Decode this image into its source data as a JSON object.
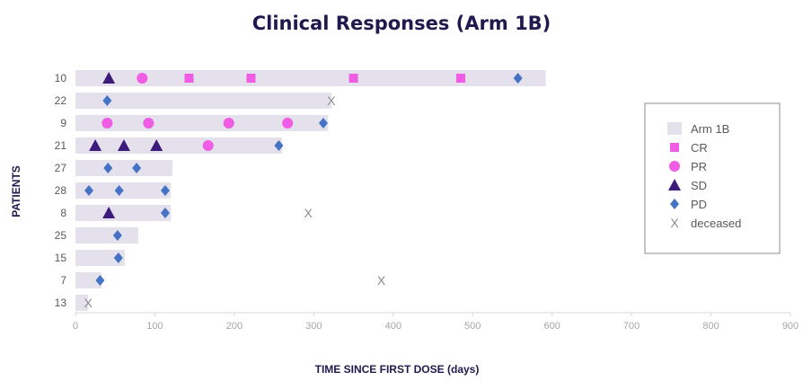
{
  "chart_data": {
    "type": "scatter",
    "subtype": "swimmer",
    "title": "Clinical Responses (Arm 1B)",
    "xlabel": "TIME SINCE FIRST DOSE (days)",
    "ylabel": "PATIENTS",
    "xlim": [
      0,
      900
    ],
    "xticks": [
      0,
      100,
      200,
      300,
      400,
      500,
      600,
      700,
      800,
      900
    ],
    "grid": false,
    "legend_position": "right",
    "colors": {
      "bar": "#e4e0ec",
      "CR": "#f05ce3",
      "PR": "#f05ce3",
      "SD": "#3d1b7c",
      "PD": "#4472c4",
      "deceased": "#8c8c8c"
    },
    "legend": [
      {
        "key": "bar",
        "label": "Arm 1B"
      },
      {
        "key": "CR",
        "label": "CR"
      },
      {
        "key": "PR",
        "label": "PR"
      },
      {
        "key": "SD",
        "label": "SD"
      },
      {
        "key": "PD",
        "label": "PD"
      },
      {
        "key": "deceased",
        "label": "deceased"
      }
    ],
    "patients": [
      {
        "id": "10",
        "duration": 592,
        "events": [
          {
            "type": "SD",
            "x": 42
          },
          {
            "type": "PR",
            "x": 84
          },
          {
            "type": "CR",
            "x": 143
          },
          {
            "type": "CR",
            "x": 221
          },
          {
            "type": "CR",
            "x": 350
          },
          {
            "type": "CR",
            "x": 485
          },
          {
            "type": "PD",
            "x": 557
          }
        ]
      },
      {
        "id": "22",
        "duration": 322,
        "events": [
          {
            "type": "PD",
            "x": 40
          },
          {
            "type": "deceased",
            "x": 322
          }
        ]
      },
      {
        "id": "9",
        "duration": 318,
        "events": [
          {
            "type": "PR",
            "x": 40
          },
          {
            "type": "PR",
            "x": 92
          },
          {
            "type": "PR",
            "x": 193
          },
          {
            "type": "PR",
            "x": 267
          },
          {
            "type": "PD",
            "x": 312
          }
        ]
      },
      {
        "id": "21",
        "duration": 260,
        "events": [
          {
            "type": "SD",
            "x": 25
          },
          {
            "type": "SD",
            "x": 61
          },
          {
            "type": "SD",
            "x": 102
          },
          {
            "type": "PR",
            "x": 167
          },
          {
            "type": "PD",
            "x": 256
          }
        ]
      },
      {
        "id": "27",
        "duration": 122,
        "events": [
          {
            "type": "PD",
            "x": 41
          },
          {
            "type": "PD",
            "x": 77
          }
        ]
      },
      {
        "id": "28",
        "duration": 120,
        "events": [
          {
            "type": "PD",
            "x": 17
          },
          {
            "type": "PD",
            "x": 55
          },
          {
            "type": "PD",
            "x": 113
          }
        ]
      },
      {
        "id": "8",
        "duration": 120,
        "events": [
          {
            "type": "SD",
            "x": 42
          },
          {
            "type": "PD",
            "x": 113
          },
          {
            "type": "deceased",
            "x": 293
          }
        ]
      },
      {
        "id": "25",
        "duration": 79,
        "events": [
          {
            "type": "PD",
            "x": 53
          }
        ]
      },
      {
        "id": "15",
        "duration": 62,
        "events": [
          {
            "type": "PD",
            "x": 54
          }
        ]
      },
      {
        "id": "7",
        "duration": 33,
        "events": [
          {
            "type": "PD",
            "x": 31
          },
          {
            "type": "deceased",
            "x": 385
          }
        ]
      },
      {
        "id": "13",
        "duration": 16,
        "events": [
          {
            "type": "deceased",
            "x": 16
          }
        ]
      }
    ]
  }
}
